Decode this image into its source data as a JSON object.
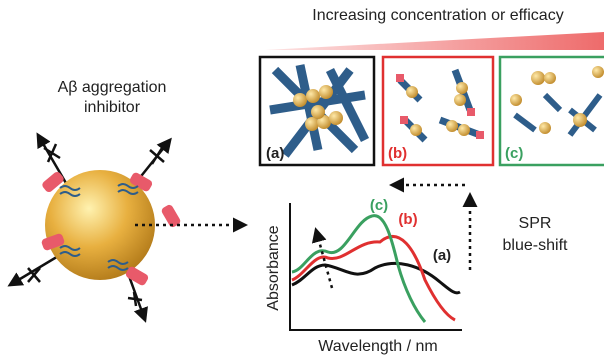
{
  "header": {
    "title": "Increasing concentration or efficacy"
  },
  "inhibitor": {
    "lines": [
      "Aβ aggregation",
      "inhibitor"
    ]
  },
  "panels": [
    {
      "label": "(a)"
    },
    {
      "label": "(b)"
    },
    {
      "label": "(c)"
    }
  ],
  "spectrum": {
    "curve_labels": [
      "(c)",
      "(b)",
      "(a)"
    ],
    "y_label": "Absorbance",
    "x_label": "Wavelength / nm"
  },
  "shift": {
    "lines": [
      "SPR",
      "blue-shift"
    ]
  }
}
